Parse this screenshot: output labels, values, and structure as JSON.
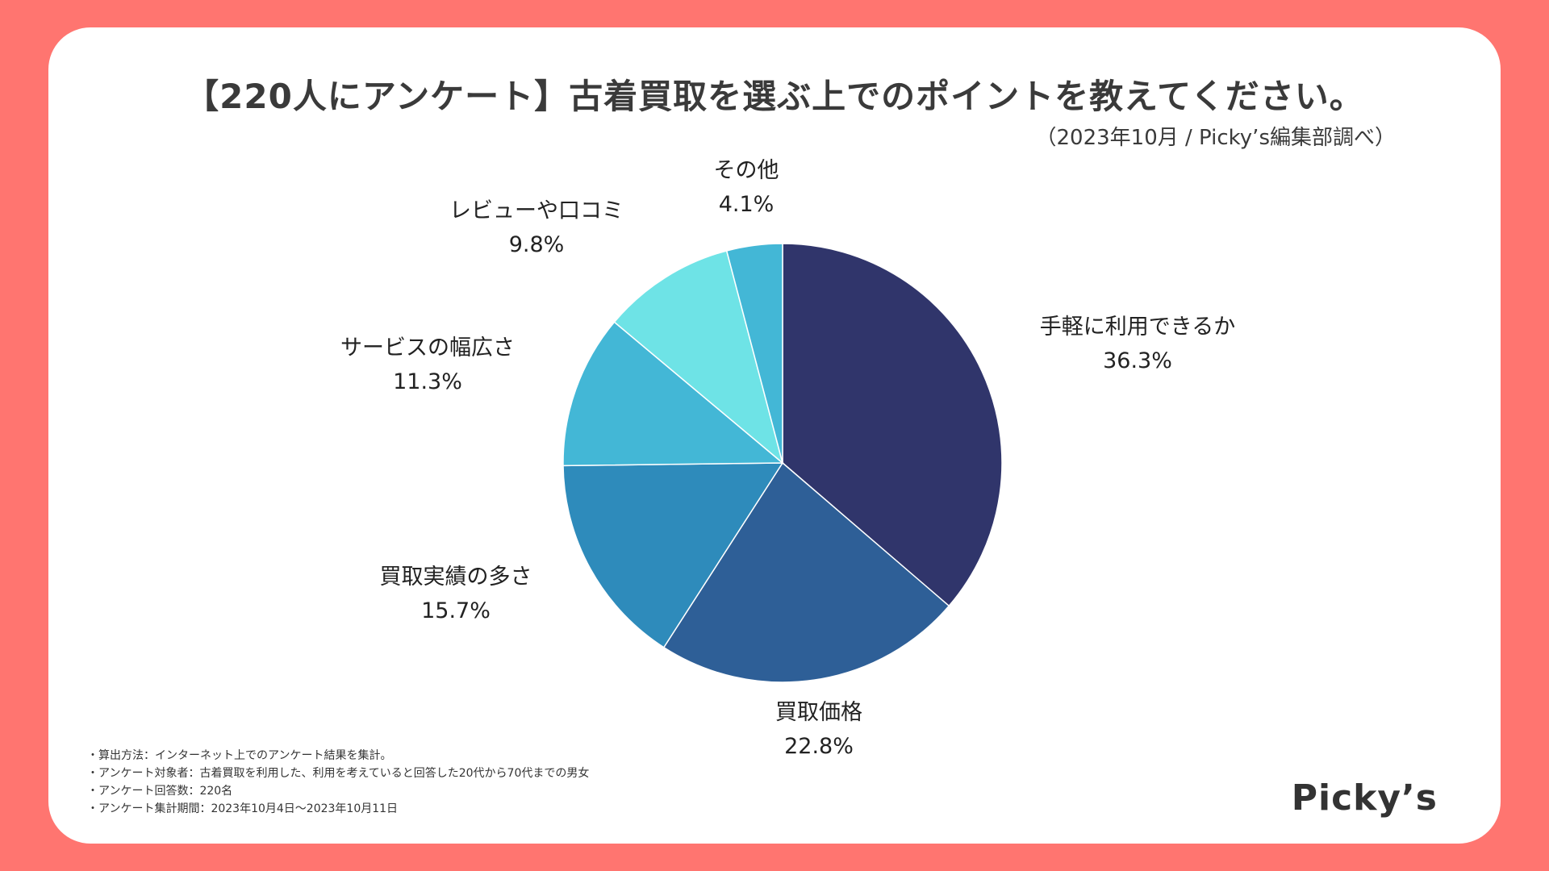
{
  "chart_data": {
    "type": "pie",
    "title": "【220人にアンケート】古着買取を選ぶ上でのポイントを教えてください。",
    "subtitle": "（2023年10月 / Picky’s編集部調べ）",
    "categories": [
      "手軽に利用できるか",
      "買取価格",
      "買取実績の多さ",
      "サービスの幅広さ",
      "レビューや口コミ",
      "その他"
    ],
    "values": [
      36.3,
      22.8,
      15.7,
      11.3,
      9.8,
      4.1
    ],
    "value_labels": [
      "36.3%",
      "22.8%",
      "15.7%",
      "11.3%",
      "9.8%",
      "4.1%"
    ],
    "colors": [
      "#30356b",
      "#2e5f97",
      "#2e8bbb",
      "#43b7d6",
      "#6ee3e6",
      "#43b7d6"
    ],
    "start": "12 o'clock",
    "direction": "clockwise",
    "legend": "none"
  },
  "notes": [
    "・算出方法：インターネット上でのアンケート結果を集計。",
    "・アンケート対象者：古着買取を利用した、利用を考えていると回答した20代から70代までの男女",
    "・アンケート回答数：220名",
    "・アンケート集計期間：2023年10月4日〜2023年10月11日"
  ],
  "brand": {
    "logo_text": "Picky’s",
    "background_color": "#ff7570"
  }
}
